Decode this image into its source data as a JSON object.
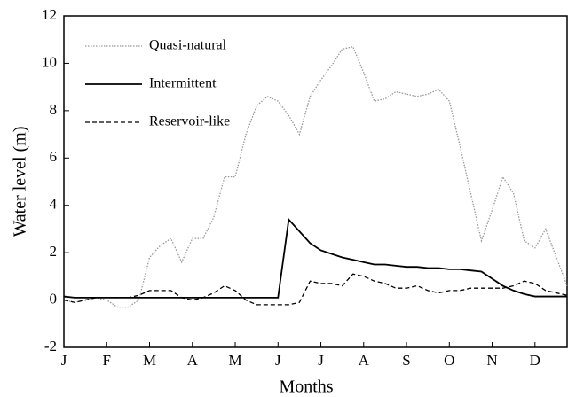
{
  "chart_data": {
    "type": "line",
    "x_label": "Months",
    "y_label": "Water level (m)",
    "categories": [
      "J",
      null,
      null,
      null,
      "F",
      null,
      null,
      null,
      "M",
      null,
      null,
      null,
      "A",
      null,
      null,
      null,
      "M",
      null,
      null,
      null,
      "J",
      null,
      null,
      null,
      "J",
      null,
      null,
      null,
      "A",
      null,
      null,
      null,
      "S",
      null,
      null,
      null,
      "O",
      null,
      null,
      null,
      "N",
      null,
      null,
      null,
      "D",
      null,
      null,
      null
    ],
    "series": [
      {
        "name": "Quasi-natural",
        "color": "#999999",
        "dash": "dotted",
        "values": [
          0.0,
          -0.1,
          0.0,
          0.1,
          0.0,
          -0.3,
          -0.3,
          0.0,
          1.8,
          2.3,
          2.6,
          1.6,
          2.6,
          2.6,
          3.5,
          5.2,
          5.2,
          7.0,
          8.2,
          8.6,
          8.4,
          7.8,
          7.0,
          8.6,
          9.3,
          9.9,
          10.6,
          10.7,
          9.6,
          8.4,
          8.5,
          8.8,
          8.7,
          8.6,
          8.7,
          8.9,
          8.4,
          6.5,
          4.5,
          2.5,
          3.8,
          5.2,
          4.5,
          2.5,
          2.2,
          3.0,
          1.8,
          0.6
        ]
      },
      {
        "name": "Intermittent",
        "color": "#000000",
        "dash": "solid",
        "values": [
          0.15,
          0.1,
          0.1,
          0.1,
          0.1,
          0.1,
          0.1,
          0.1,
          0.1,
          0.1,
          0.1,
          0.1,
          0.1,
          0.1,
          0.1,
          0.1,
          0.1,
          0.1,
          0.1,
          0.1,
          0.1,
          3.4,
          2.9,
          2.4,
          2.1,
          1.95,
          1.8,
          1.7,
          1.6,
          1.5,
          1.5,
          1.45,
          1.4,
          1.4,
          1.35,
          1.35,
          1.3,
          1.3,
          1.25,
          1.2,
          0.9,
          0.6,
          0.4,
          0.25,
          0.15,
          0.15,
          0.15,
          0.15
        ]
      },
      {
        "name": "Reservoir-like",
        "color": "#000000",
        "dash": "dashed",
        "values": [
          0.0,
          -0.1,
          0.0,
          0.1,
          0.1,
          0.1,
          0.1,
          0.2,
          0.4,
          0.4,
          0.4,
          0.1,
          0.0,
          0.1,
          0.3,
          0.6,
          0.4,
          0.0,
          -0.2,
          -0.2,
          -0.2,
          -0.2,
          -0.1,
          0.8,
          0.7,
          0.7,
          0.6,
          1.1,
          1.0,
          0.8,
          0.7,
          0.5,
          0.5,
          0.6,
          0.4,
          0.3,
          0.4,
          0.4,
          0.5,
          0.5,
          0.5,
          0.5,
          0.6,
          0.8,
          0.7,
          0.4,
          0.3,
          0.2
        ]
      }
    ],
    "ylim": [
      -2,
      12
    ],
    "yticks": [
      -2,
      0,
      2,
      4,
      6,
      8,
      10,
      12
    ],
    "grid": false,
    "legend": "upper-left"
  }
}
